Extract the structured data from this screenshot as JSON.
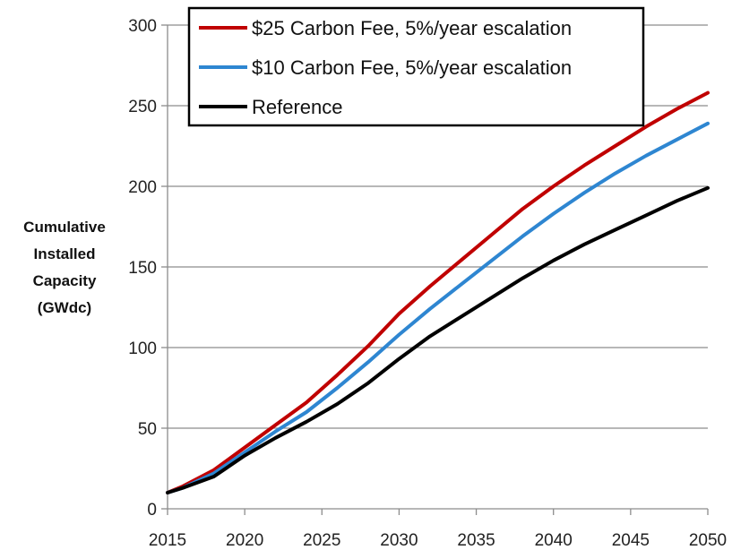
{
  "chart_data": {
    "type": "line",
    "title": "",
    "xlabel": "",
    "ylabel_lines": [
      "Cumulative",
      "Installed",
      "Capacity",
      "(GWdc)"
    ],
    "xlim": [
      2015,
      2050
    ],
    "ylim": [
      0,
      300
    ],
    "x_ticks": [
      2015,
      2020,
      2025,
      2030,
      2035,
      2040,
      2045,
      2050
    ],
    "y_ticks": [
      0,
      50,
      100,
      150,
      200,
      250,
      300
    ],
    "grid": "horizontal",
    "legend_position": "top",
    "x": [
      2015,
      2016,
      2018,
      2020,
      2022,
      2024,
      2026,
      2028,
      2030,
      2032,
      2034,
      2036,
      2038,
      2040,
      2042,
      2044,
      2046,
      2048,
      2050
    ],
    "series": [
      {
        "name": "$25 Carbon Fee, 5%/year escalation",
        "color": "#C00000",
        "values": [
          10,
          14,
          24,
          38,
          52,
          66,
          83,
          101,
          121,
          138,
          154,
          170,
          186,
          200,
          213,
          225,
          237,
          248,
          258
        ]
      },
      {
        "name": "$10 Carbon Fee, 5%/year escalation",
        "color": "#2E86D1",
        "values": [
          10,
          13,
          22,
          35,
          48,
          60,
          75,
          91,
          108,
          124,
          139,
          154,
          169,
          183,
          196,
          208,
          219,
          229,
          239
        ]
      },
      {
        "name": "Reference",
        "color": "#000000",
        "values": [
          10,
          13,
          20,
          33,
          44,
          54,
          65,
          78,
          93,
          107,
          119,
          131,
          143,
          154,
          164,
          173,
          182,
          191,
          199
        ]
      }
    ]
  }
}
